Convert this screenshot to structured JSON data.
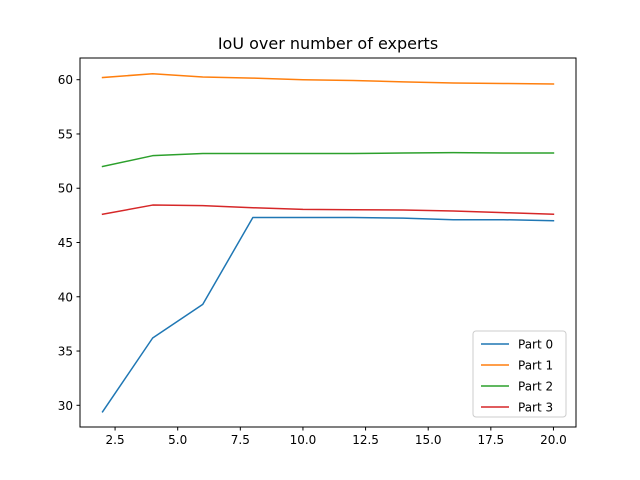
{
  "chart_data": {
    "type": "line",
    "title": "IoU over number of experts",
    "xlabel": "",
    "ylabel": "",
    "xlim": [
      1.1,
      20.9
    ],
    "ylim": [
      28.0,
      62.0
    ],
    "xticks": [
      2.5,
      5.0,
      7.5,
      10.0,
      12.5,
      15.0,
      17.5,
      20.0
    ],
    "xtick_labels": [
      "2.5",
      "5.0",
      "7.5",
      "10.0",
      "12.5",
      "15.0",
      "17.5",
      "20.0"
    ],
    "yticks": [
      30,
      35,
      40,
      45,
      50,
      55,
      60
    ],
    "ytick_labels": [
      "30",
      "35",
      "40",
      "45",
      "50",
      "55",
      "60"
    ],
    "grid": false,
    "legend_position": "lower-right",
    "x": [
      2,
      4,
      6,
      8,
      10,
      12,
      14,
      16,
      18,
      20
    ],
    "series": [
      {
        "name": "Part 0",
        "color": "#1f77b4",
        "values": [
          29.4,
          36.2,
          39.3,
          47.3,
          47.3,
          47.3,
          47.25,
          47.1,
          47.1,
          47.0
        ]
      },
      {
        "name": "Part 1",
        "color": "#ff7f0e",
        "values": [
          60.2,
          60.55,
          60.25,
          60.15,
          60.0,
          59.93,
          59.8,
          59.7,
          59.65,
          59.6
        ]
      },
      {
        "name": "Part 2",
        "color": "#2ca02c",
        "values": [
          52.0,
          53.0,
          53.2,
          53.2,
          53.2,
          53.2,
          53.25,
          53.28,
          53.25,
          53.25
        ]
      },
      {
        "name": "Part 3",
        "color": "#d62728",
        "values": [
          47.6,
          48.45,
          48.4,
          48.2,
          48.05,
          48.02,
          48.0,
          47.9,
          47.75,
          47.6
        ]
      }
    ]
  }
}
